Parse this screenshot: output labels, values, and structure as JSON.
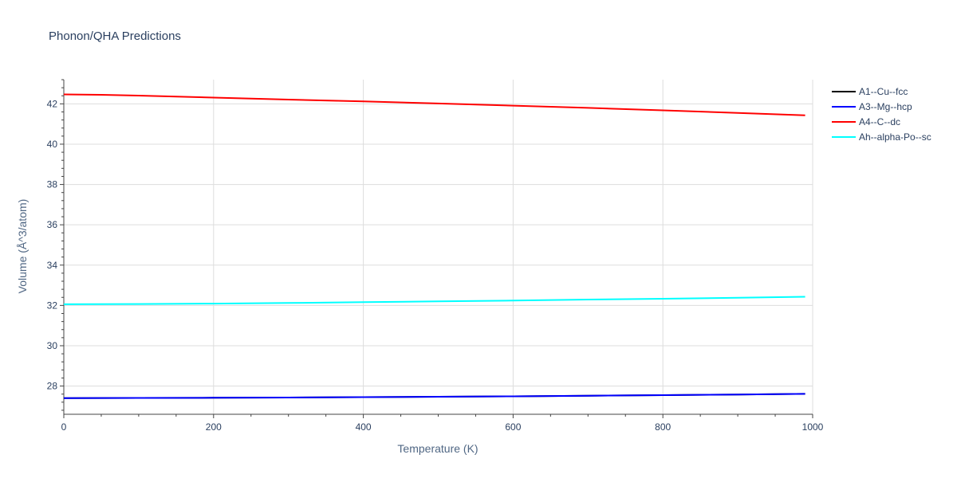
{
  "chart_data": {
    "type": "line",
    "title": "Phonon/QHA Predictions",
    "xlabel": "Temperature (K)",
    "ylabel": "Volume (Å^3/atom)",
    "xlim": [
      0,
      1000
    ],
    "ylim": [
      26.6,
      43.2
    ],
    "x_ticks": [
      0,
      200,
      400,
      600,
      800,
      1000
    ],
    "y_ticks": [
      28,
      30,
      32,
      34,
      36,
      38,
      40,
      42
    ],
    "grid": true,
    "legend_position": "top-right, outside plot",
    "series": [
      {
        "name": "A1--Cu--fcc",
        "color": "#000000",
        "x": [
          0,
          100,
          200,
          300,
          400,
          500,
          600,
          700,
          800,
          900,
          990
        ],
        "y": [
          27.4,
          27.41,
          27.42,
          27.43,
          27.45,
          27.47,
          27.49,
          27.52,
          27.55,
          27.58,
          27.61
        ]
      },
      {
        "name": "A3--Mg--hcp",
        "color": "#0000ff",
        "x": [
          0,
          100,
          200,
          300,
          400,
          500,
          600,
          700,
          800,
          900,
          990
        ],
        "y": [
          27.4,
          27.41,
          27.42,
          27.43,
          27.45,
          27.47,
          27.49,
          27.52,
          27.55,
          27.58,
          27.61
        ]
      },
      {
        "name": "A4--C--dc",
        "color": "#ff0000",
        "x": [
          0,
          50,
          100,
          200,
          300,
          400,
          500,
          600,
          700,
          800,
          900,
          990
        ],
        "y": [
          42.47,
          42.45,
          42.41,
          42.31,
          42.21,
          42.12,
          42.02,
          41.91,
          41.8,
          41.68,
          41.55,
          41.43
        ]
      },
      {
        "name": "Ah--alpha-Po--sc",
        "color": "#00ffff",
        "x": [
          0,
          100,
          200,
          300,
          400,
          500,
          600,
          700,
          800,
          900,
          990
        ],
        "y": [
          32.06,
          32.07,
          32.09,
          32.12,
          32.16,
          32.2,
          32.24,
          32.29,
          32.33,
          32.38,
          32.43
        ]
      }
    ]
  }
}
